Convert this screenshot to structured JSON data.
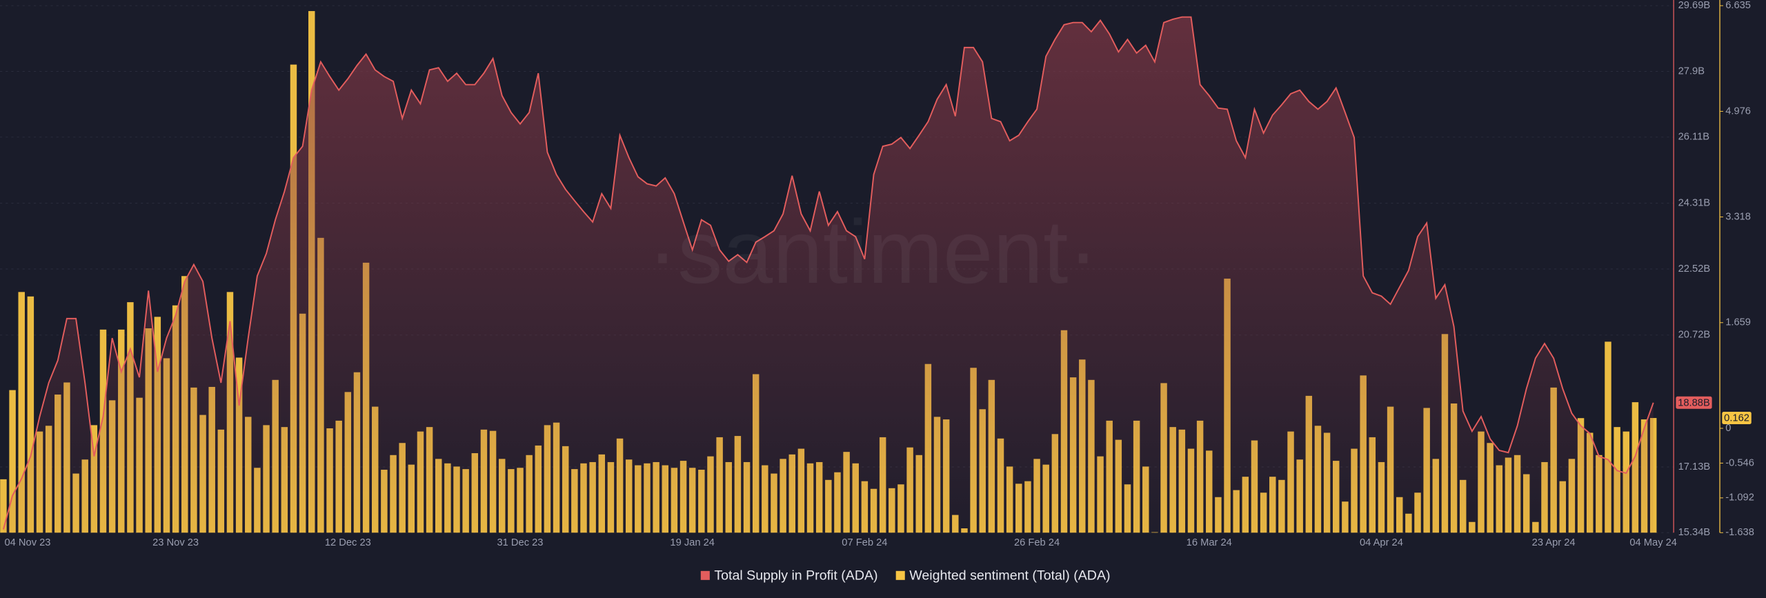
{
  "chart_data": {
    "type": "combo",
    "watermark": "·santiment·",
    "categories": [
      "04 Nov 23",
      null,
      null,
      null,
      null,
      null,
      null,
      null,
      null,
      null,
      null,
      null,
      null,
      null,
      null,
      null,
      null,
      null,
      null,
      "23 Nov 23",
      null,
      null,
      null,
      null,
      null,
      null,
      null,
      null,
      null,
      null,
      null,
      null,
      null,
      null,
      null,
      null,
      null,
      null,
      "12 Dec 23",
      null,
      null,
      null,
      null,
      null,
      null,
      null,
      null,
      null,
      null,
      null,
      null,
      null,
      null,
      null,
      null,
      null,
      null,
      "31 Dec 23",
      null,
      null,
      null,
      null,
      null,
      null,
      null,
      null,
      null,
      null,
      null,
      null,
      null,
      null,
      null,
      null,
      null,
      null,
      "19 Jan 24",
      null,
      null,
      null,
      null,
      null,
      null,
      null,
      null,
      null,
      null,
      null,
      null,
      null,
      null,
      null,
      null,
      null,
      null,
      "07 Feb 24",
      null,
      null,
      null,
      null,
      null,
      null,
      null,
      null,
      null,
      null,
      null,
      null,
      null,
      null,
      null,
      null,
      null,
      null,
      "26 Feb 24",
      null,
      null,
      null,
      null,
      null,
      null,
      null,
      null,
      null,
      null,
      null,
      null,
      null,
      null,
      null,
      null,
      null,
      null,
      "16 Mar 24",
      null,
      null,
      null,
      null,
      null,
      null,
      null,
      null,
      null,
      null,
      null,
      null,
      null,
      null,
      null,
      null,
      null,
      null,
      "04 Apr 24",
      null,
      null,
      null,
      null,
      null,
      null,
      null,
      null,
      null,
      null,
      null,
      null,
      null,
      null,
      null,
      null,
      null,
      null,
      "23 Apr 24",
      null,
      null,
      null,
      null,
      null,
      null,
      null,
      null,
      null,
      null,
      "04 May 24"
    ],
    "series": [
      {
        "name": "Total Supply in Profit (ADA)",
        "type": "line",
        "color": "#e35d5d",
        "last_label": "18.88B",
        "values": [
          15.43,
          16.35,
          16.81,
          17.42,
          18.5,
          19.42,
          20.03,
          21.17,
          21.17,
          19.42,
          17.42,
          18.5,
          20.64,
          19.72,
          20.34,
          19.57,
          21.93,
          19.72,
          20.64,
          21.26,
          22.18,
          22.64,
          22.18,
          20.64,
          19.42,
          21.1,
          18.8,
          20.64,
          22.33,
          22.94,
          23.86,
          24.63,
          25.55,
          25.86,
          27.39,
          28.16,
          27.76,
          27.39,
          27.7,
          28.06,
          28.37,
          27.94,
          27.76,
          27.63,
          26.62,
          27.39,
          27.02,
          27.94,
          28.0,
          27.63,
          27.85,
          27.54,
          27.54,
          27.85,
          28.25,
          27.24,
          26.78,
          26.47,
          26.78,
          27.85,
          25.7,
          25.09,
          24.69,
          24.38,
          24.08,
          23.8,
          24.57,
          24.17,
          26.16,
          25.55,
          25.03,
          24.84,
          24.78,
          25.0,
          24.57,
          23.8,
          23.04,
          23.86,
          23.71,
          23.04,
          22.73,
          22.91,
          22.7,
          23.25,
          23.4,
          23.56,
          24.02,
          25.06,
          24.02,
          23.56,
          24.63,
          23.71,
          24.08,
          23.56,
          23.4,
          22.79,
          25.09,
          25.86,
          25.92,
          26.1,
          25.8,
          26.16,
          26.53,
          27.14,
          27.54,
          26.68,
          28.55,
          28.55,
          28.16,
          26.62,
          26.53,
          26.01,
          26.16,
          26.53,
          26.87,
          28.31,
          28.77,
          29.17,
          29.23,
          29.23,
          28.98,
          29.29,
          28.92,
          28.43,
          28.77,
          28.4,
          28.61,
          28.16,
          29.23,
          29.32,
          29.38,
          29.38,
          27.54,
          27.24,
          26.9,
          26.87,
          26.01,
          25.55,
          26.87,
          26.22,
          26.71,
          26.99,
          27.29,
          27.39,
          27.08,
          26.87,
          27.08,
          27.45,
          26.78,
          26.1,
          22.33,
          21.87,
          21.78,
          21.56,
          22.02,
          22.48,
          23.4,
          23.77,
          21.72,
          22.09,
          20.95,
          18.65,
          18.1,
          18.5,
          17.89,
          17.58,
          17.52,
          18.25,
          19.26,
          20.09,
          20.49,
          20.09,
          19.26,
          18.59,
          18.25,
          18.04,
          17.42,
          17.33,
          17.03,
          16.96,
          17.42,
          18.19,
          18.88
        ]
      },
      {
        "name": "Weighted sentiment (Total) (ADA)",
        "type": "bar",
        "axis": "y2",
        "color": "#f7c544",
        "last_label": "0.162",
        "values": [
          -0.8,
          0.6,
          2.14,
          2.07,
          -0.05,
          0.04,
          0.53,
          0.72,
          -0.71,
          -0.49,
          0.05,
          1.55,
          0.44,
          1.55,
          1.98,
          0.48,
          1.57,
          1.75,
          1.1,
          1.93,
          2.39,
          0.64,
          0.21,
          0.65,
          -0.02,
          2.14,
          1.11,
          0.18,
          -0.62,
          0.05,
          0.76,
          0.02,
          5.71,
          1.8,
          6.55,
          2.99,
          0,
          0.12,
          0.57,
          0.88,
          2.6,
          0.34,
          -0.65,
          -0.42,
          -0.23,
          -0.57,
          -0.05,
          0.02,
          -0.48,
          -0.55,
          -0.6,
          -0.64,
          -0.39,
          -0.02,
          -0.04,
          -0.48,
          -0.64,
          -0.62,
          -0.42,
          -0.27,
          0.05,
          0.09,
          -0.28,
          -0.64,
          -0.55,
          -0.53,
          -0.41,
          -0.53,
          -0.16,
          -0.49,
          -0.58,
          -0.55,
          -0.53,
          -0.58,
          -0.62,
          -0.51,
          -0.62,
          -0.65,
          -0.44,
          -0.14,
          -0.53,
          -0.12,
          -0.53,
          0.85,
          -0.58,
          -0.71,
          -0.48,
          -0.41,
          -0.32,
          -0.55,
          -0.53,
          -0.81,
          -0.69,
          -0.37,
          -0.55,
          -0.83,
          -0.95,
          -0.14,
          -0.94,
          -0.88,
          -0.3,
          -0.42,
          1.01,
          0.18,
          0.14,
          -1.36,
          -1.57,
          0.95,
          0.3,
          0.76,
          -0.16,
          -0.6,
          -0.87,
          -0.83,
          -0.48,
          -0.57,
          -0.09,
          1.54,
          0.8,
          1.08,
          0.76,
          -0.44,
          0.12,
          -0.18,
          -0.88,
          0.12,
          -0.6,
          -1.63,
          0.71,
          0.02,
          -0.02,
          -0.32,
          0.12,
          -0.35,
          -1.08,
          2.35,
          -0.97,
          -0.76,
          -0.19,
          -1.01,
          -0.76,
          -0.81,
          -0.05,
          -0.49,
          0.51,
          0.04,
          -0.07,
          -0.51,
          -1.15,
          -0.32,
          0.83,
          -0.14,
          -0.53,
          0.34,
          -1.08,
          -1.34,
          -1.01,
          0.32,
          -0.48,
          1.48,
          0.39,
          -0.81,
          -1.47,
          -0.05,
          -0.23,
          -0.58,
          -0.46,
          -0.42,
          -0.72,
          -1.47,
          -0.53,
          0.64,
          -0.83,
          -0.48,
          0.16,
          -0.07,
          -0.42,
          1.36,
          0.02,
          -0.05,
          0.41,
          0.14,
          0.162
        ]
      }
    ],
    "ylim": [
      15.34,
      29.69
    ],
    "yticks": [
      {
        "value": 15.34,
        "label": "15.34B"
      },
      {
        "value": 17.13,
        "label": "17.13B"
      },
      {
        "value": 20.72,
        "label": "20.72B"
      },
      {
        "value": 22.52,
        "label": "22.52B"
      },
      {
        "value": 24.31,
        "label": "24.31B"
      },
      {
        "value": 26.11,
        "label": "26.11B"
      },
      {
        "value": 27.9,
        "label": "27.9B"
      },
      {
        "value": 29.69,
        "label": "29.69B"
      }
    ],
    "y2lim": [
      -1.638,
      6.635
    ],
    "y2ticks": [
      -1.638,
      -1.092,
      -0.546,
      0,
      1.659,
      3.318,
      4.976,
      6.635
    ],
    "grid": true
  }
}
